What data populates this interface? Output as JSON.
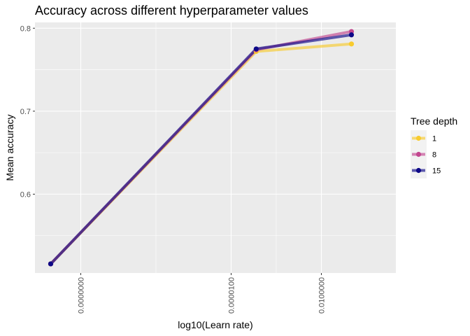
{
  "chart_data": {
    "type": "line",
    "title": "Accuracy across different hyperparameter values",
    "xlabel": "log10(Learn rate)",
    "ylabel": "Mean accuracy",
    "x_scale": "log10",
    "x_ticks": [
      1e-10,
      1e-05,
      0.01
    ],
    "x_tick_labels": [
      "0.0000000",
      "0.0000100",
      "0.0100000"
    ],
    "y_ticks": [
      0.6,
      0.7,
      0.8
    ],
    "y_tick_labels": [
      "0.6",
      "0.7",
      "0.8"
    ],
    "xlim": [
      3e-12,
      3
    ],
    "ylim": [
      0.505,
      0.807
    ],
    "grid": true,
    "legend": {
      "title": "Tree depth",
      "position": "right"
    },
    "series": [
      {
        "name": "1",
        "color": "#F8CB2E",
        "x": [
          1e-11,
          6.81e-05,
          0.1
        ],
        "y": [
          0.516,
          0.772,
          0.781
        ]
      },
      {
        "name": "8",
        "color": "#C2478F",
        "x": [
          1e-11,
          6.81e-05,
          0.1
        ],
        "y": [
          0.516,
          0.774,
          0.796
        ]
      },
      {
        "name": "15",
        "color": "#0D0887",
        "x": [
          1e-11,
          6.81e-05,
          0.1
        ],
        "y": [
          0.516,
          0.775,
          0.792
        ]
      }
    ]
  }
}
